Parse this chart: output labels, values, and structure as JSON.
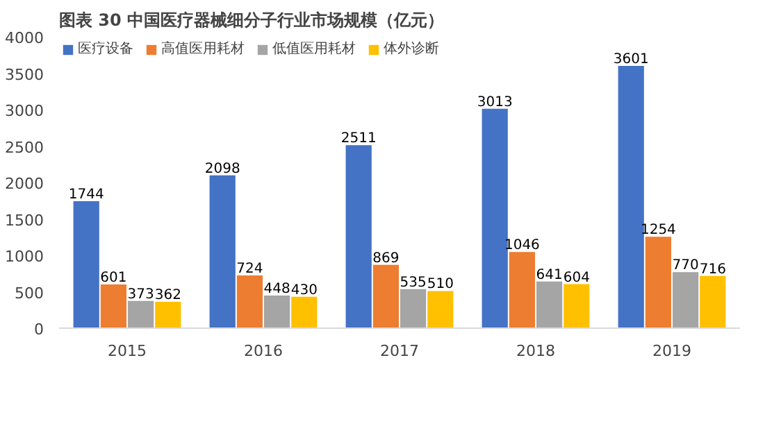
{
  "chart_data": {
    "type": "bar",
    "title": "图表 30 中国医疗器械细分子行业市场规模（亿元）",
    "categories": [
      "2015",
      "2016",
      "2017",
      "2018",
      "2019"
    ],
    "series": [
      {
        "name": "医疗设备",
        "color": "#4472c4",
        "values": [
          1744,
          2098,
          2511,
          3013,
          3601
        ]
      },
      {
        "name": "高值医用耗材",
        "color": "#ed7d31",
        "values": [
          601,
          724,
          869,
          1046,
          1254
        ]
      },
      {
        "name": "低值医用耗材",
        "color": "#a5a5a5",
        "values": [
          373,
          448,
          535,
          641,
          770
        ]
      },
      {
        "name": "体外诊断",
        "color": "#ffc000",
        "values": [
          362,
          430,
          510,
          604,
          716
        ]
      }
    ],
    "ylim": [
      0,
      4000
    ],
    "yticks": [
      0,
      500,
      1000,
      1500,
      2000,
      2500,
      3000,
      3500,
      4000
    ],
    "grid": false,
    "legend": "top left",
    "data_labels": true
  }
}
